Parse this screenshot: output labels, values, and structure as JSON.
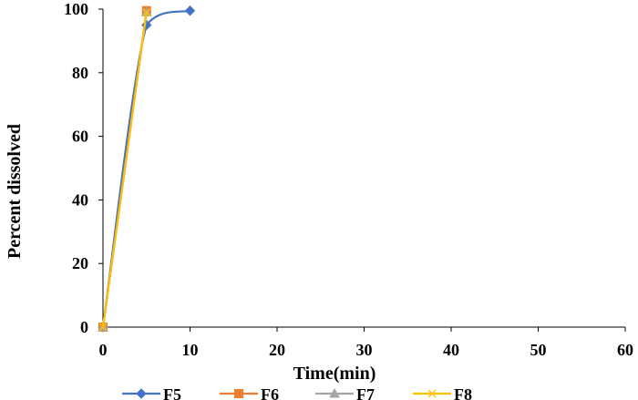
{
  "chart_data": {
    "type": "scatter",
    "title": "",
    "xlabel": "Time(min)",
    "ylabel": "Percent dissolved",
    "xlim": [
      0,
      60
    ],
    "ylim": [
      0,
      100
    ],
    "xticks": [
      "0",
      "10",
      "20",
      "30",
      "40",
      "50",
      "60"
    ],
    "yticks": [
      "0",
      "20",
      "40",
      "60",
      "80",
      "100"
    ],
    "grid": false,
    "legend_position": "bottom",
    "series": [
      {
        "name": "F5",
        "color": "#4472C4",
        "marker": "diamond",
        "x": [
          0,
          5,
          10
        ],
        "y": [
          0,
          95,
          99.5
        ]
      },
      {
        "name": "F6",
        "color": "#ED7D31",
        "marker": "square",
        "x": [
          0,
          5
        ],
        "y": [
          0,
          99.5
        ]
      },
      {
        "name": "F7",
        "color": "#A5A5A5",
        "marker": "triangle",
        "x": [
          0,
          5
        ],
        "y": [
          0,
          99
        ]
      },
      {
        "name": "F8",
        "color": "#FFC000",
        "marker": "x",
        "x": [
          0,
          5
        ],
        "y": [
          0,
          99
        ]
      }
    ]
  }
}
